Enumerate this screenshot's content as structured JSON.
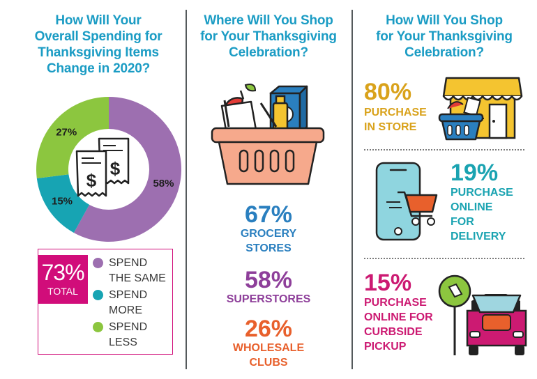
{
  "colors": {
    "title": "#1b9cc4",
    "purple": "#9d6fb0",
    "teal": "#17a4b3",
    "green": "#8cc63f",
    "magenta": "#d10d7a",
    "blue": "#2a7fbf",
    "violet": "#8e3f9a",
    "orange": "#e8602c",
    "gold": "#d9a21b",
    "cyan": "#1aa3b1",
    "pink": "#cc1a72"
  },
  "panel1": {
    "title": "How Will Your\nOverall Spending for\nThanksgiving Items\nChange in 2020?",
    "chart_data": {
      "type": "pie",
      "donut": true,
      "slices": [
        {
          "label": "SPEND THE SAME",
          "value": 58,
          "display": "58%",
          "color": "#9d6fb0"
        },
        {
          "label": "SPEND MORE",
          "value": 15,
          "display": "15%",
          "color": "#17a4b3"
        },
        {
          "label": "SPEND LESS",
          "value": 27,
          "display": "27%",
          "color": "#8cc63f"
        }
      ],
      "legend_placement": "bottom"
    },
    "total": {
      "value": "73%",
      "label": "TOTAL"
    },
    "legend": [
      {
        "text": "SPEND\nTHE SAME",
        "icon": "purple-dot-icon"
      },
      {
        "text": "SPEND\nMORE",
        "icon": "teal-dot-icon"
      },
      {
        "text": "SPEND\nLESS",
        "icon": "green-dot-icon"
      }
    ],
    "center_icon": "receipts-icon"
  },
  "panel2": {
    "title": "Where Will You Shop\nfor Your Thanksgiving\nCelebration?",
    "icon": "grocery-basket-icon",
    "stats": [
      {
        "value": "67%",
        "label": "GROCERY\nSTORES"
      },
      {
        "value": "58%",
        "label": "SUPERSTORES"
      },
      {
        "value": "26%",
        "label": "WHOLESALE\nCLUBS"
      }
    ]
  },
  "panel3": {
    "title": "How Will You Shop\nfor Your Thanksgiving\nCelebration?",
    "stats": [
      {
        "value": "80%",
        "label": "PURCHASE\nIN STORE",
        "icon": "storefront-icon"
      },
      {
        "value": "19%",
        "label": "PURCHASE\nONLINE\nFOR\nDELIVERY",
        "icon": "phone-cart-icon"
      },
      {
        "value": "15%",
        "label": "PURCHASE\nONLINE FOR\nCURBSIDE\nPICKUP",
        "icon": "curbside-pickup-icon"
      }
    ]
  }
}
